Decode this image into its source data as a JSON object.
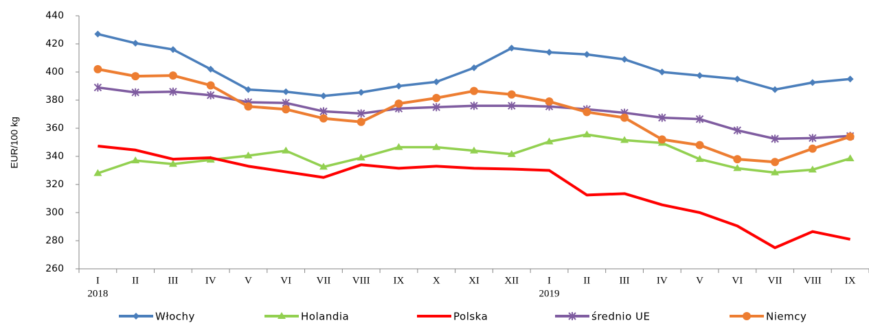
{
  "chart_data": {
    "type": "line",
    "y_label": "EUR/100  kg",
    "categories": [
      [
        "I",
        "2018"
      ],
      [
        "II"
      ],
      [
        "III"
      ],
      [
        "IV"
      ],
      [
        "V"
      ],
      [
        "VI"
      ],
      [
        "VII"
      ],
      [
        "VIII"
      ],
      [
        "IX"
      ],
      [
        "X"
      ],
      [
        "XI"
      ],
      [
        "XII"
      ],
      [
        "I",
        "2019"
      ],
      [
        "II"
      ],
      [
        "III"
      ],
      [
        "IV"
      ],
      [
        "V"
      ],
      [
        "VI"
      ],
      [
        "VII"
      ],
      [
        "VIII"
      ],
      [
        "IX"
      ]
    ],
    "ylim": [
      260,
      440
    ],
    "yticks": [
      260,
      280,
      300,
      320,
      340,
      360,
      380,
      400,
      420,
      440
    ],
    "series": [
      {
        "name": "Włochy",
        "color": "#4a7ebb",
        "marker": "diamond",
        "values": [
          427,
          420.5,
          416,
          402,
          387.5,
          386,
          383,
          385.5,
          390,
          393,
          403,
          417,
          414,
          412.5,
          409,
          400,
          397.5,
          395,
          387.5,
          392.5,
          395
        ]
      },
      {
        "name": "Holandia",
        "color": "#92d050",
        "marker": "triangle",
        "values": [
          328,
          337,
          334.5,
          337.5,
          340.5,
          344,
          332.5,
          339,
          346.5,
          346.5,
          344,
          341.5,
          350.5,
          355.5,
          351.5,
          349.5,
          338,
          331.5,
          328.5,
          330.5,
          338.5
        ]
      },
      {
        "name": "Polska",
        "color": "#ff0000",
        "marker": "none",
        "values": [
          347.3,
          344.5,
          338,
          339,
          333,
          329,
          325,
          334,
          331.5,
          333,
          331.5,
          331,
          330,
          312.5,
          313.5,
          305.5,
          300,
          290.5,
          275,
          286.5,
          281
        ]
      },
      {
        "name": "średnio UE",
        "color": "#7f5ca0",
        "marker": "star",
        "values": [
          389,
          385.5,
          386,
          383.5,
          378.5,
          378,
          372,
          370.5,
          374,
          375,
          376,
          376,
          375.5,
          373.5,
          371,
          367.5,
          366.5,
          358.5,
          352.5,
          353,
          354.5
        ]
      },
      {
        "name": "Niemcy",
        "color": "#ed7d31",
        "marker": "circle",
        "values": [
          402,
          397,
          397.5,
          390.5,
          375.5,
          373.5,
          367,
          364.5,
          377.5,
          381.5,
          386.5,
          384,
          379,
          371.5,
          367.5,
          352,
          348,
          338,
          336,
          345.5,
          354
        ]
      }
    ]
  }
}
